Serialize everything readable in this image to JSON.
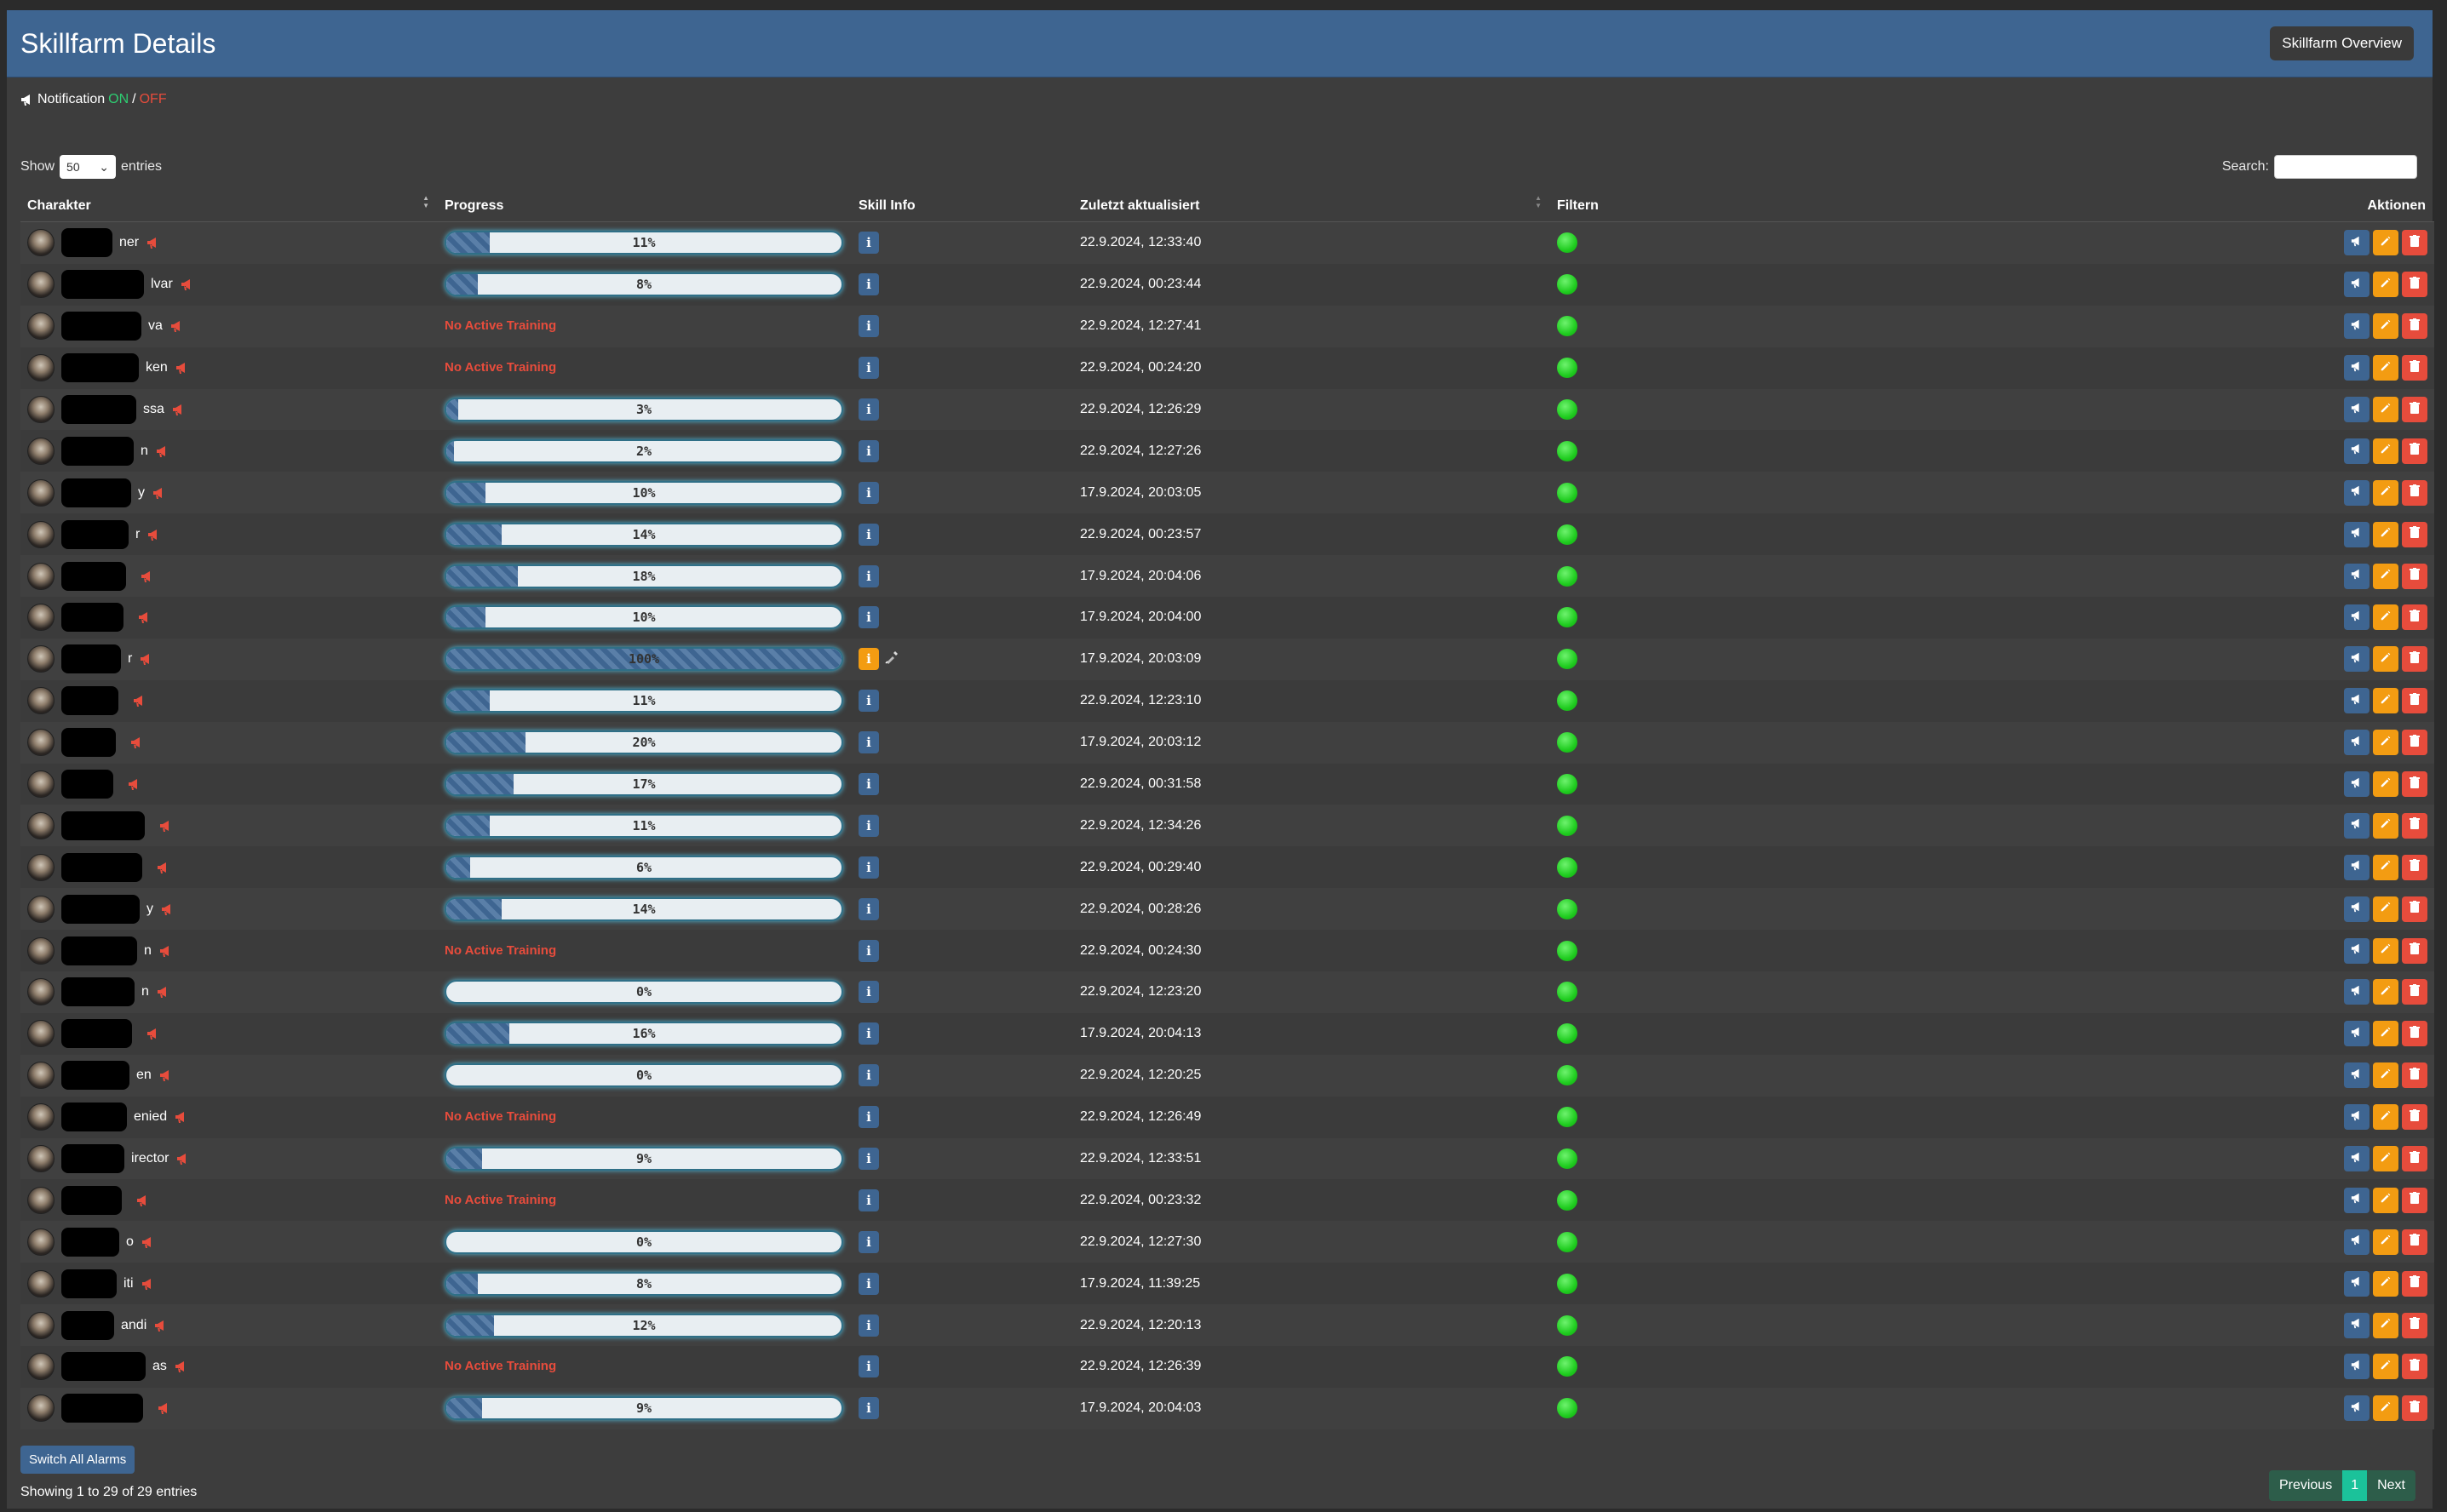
{
  "header": {
    "title": "Skillfarm Details",
    "overview_button": "Skillfarm Overview"
  },
  "notification": {
    "label": "Notification",
    "on": "ON",
    "sep": "/",
    "off": "OFF"
  },
  "controls": {
    "show_label": "Show",
    "entries_label": "entries",
    "page_size": "50",
    "search_label": "Search:",
    "search_value": ""
  },
  "columns": {
    "character": "Charakter",
    "progress": "Progress",
    "skill_info": "Skill Info",
    "updated": "Zuletzt aktualisiert",
    "filter": "Filtern",
    "actions": "Aktionen"
  },
  "no_training_text": "No Active Training",
  "rows": [
    {
      "name": "ner",
      "progress": 11,
      "label": "11%",
      "updated": "22.9.2024, 12:33:40"
    },
    {
      "name": "lvar",
      "progress": 8,
      "label": "8%",
      "updated": "22.9.2024, 00:23:44"
    },
    {
      "name": "va",
      "progress": null,
      "label": "",
      "updated": "22.9.2024, 12:27:41"
    },
    {
      "name": "ken",
      "progress": null,
      "label": "",
      "updated": "22.9.2024, 00:24:20"
    },
    {
      "name": "ssa",
      "progress": 3,
      "label": "3%",
      "updated": "22.9.2024, 12:26:29"
    },
    {
      "name": "n",
      "progress": 2,
      "label": "2%",
      "updated": "22.9.2024, 12:27:26"
    },
    {
      "name": "y",
      "progress": 10,
      "label": "10%",
      "updated": "17.9.2024, 20:03:05"
    },
    {
      "name": "r",
      "progress": 14,
      "label": "14%",
      "updated": "22.9.2024, 00:23:57"
    },
    {
      "name": "",
      "progress": 18,
      "label": "18%",
      "updated": "17.9.2024, 20:04:06"
    },
    {
      "name": "",
      "progress": 10,
      "label": "10%",
      "updated": "17.9.2024, 20:04:00"
    },
    {
      "name": "r",
      "progress": 100,
      "label": "100%",
      "updated": "17.9.2024, 20:03:09",
      "warn": true
    },
    {
      "name": "",
      "progress": 11,
      "label": "11%",
      "updated": "22.9.2024, 12:23:10"
    },
    {
      "name": "",
      "progress": 20,
      "label": "20%",
      "updated": "17.9.2024, 20:03:12"
    },
    {
      "name": "",
      "progress": 17,
      "label": "17%",
      "updated": "22.9.2024, 00:31:58"
    },
    {
      "name": "",
      "progress": 11,
      "label": "11%",
      "updated": "22.9.2024, 12:34:26"
    },
    {
      "name": "",
      "progress": 6,
      "label": "6%",
      "updated": "22.9.2024, 00:29:40"
    },
    {
      "name": "y",
      "progress": 14,
      "label": "14%",
      "updated": "22.9.2024, 00:28:26"
    },
    {
      "name": "n",
      "progress": null,
      "label": "",
      "updated": "22.9.2024, 00:24:30"
    },
    {
      "name": "n",
      "progress": 0,
      "label": "0%",
      "updated": "22.9.2024, 12:23:20"
    },
    {
      "name": "",
      "progress": 16,
      "label": "16%",
      "updated": "17.9.2024, 20:04:13"
    },
    {
      "name": "en",
      "progress": 0,
      "label": "0%",
      "updated": "22.9.2024, 12:20:25"
    },
    {
      "name": "enied",
      "progress": null,
      "label": "",
      "updated": "22.9.2024, 12:26:49"
    },
    {
      "name": "irector",
      "progress": 9,
      "label": "9%",
      "updated": "22.9.2024, 12:33:51"
    },
    {
      "name": "",
      "progress": null,
      "label": "",
      "updated": "22.9.2024, 00:23:32"
    },
    {
      "name": "o",
      "progress": 0,
      "label": "0%",
      "updated": "22.9.2024, 12:27:30"
    },
    {
      "name": "iti",
      "progress": 8,
      "label": "8%",
      "updated": "17.9.2024, 11:39:25"
    },
    {
      "name": "andi",
      "progress": 12,
      "label": "12%",
      "updated": "22.9.2024, 12:20:13"
    },
    {
      "name": "as",
      "progress": null,
      "label": "",
      "updated": "22.9.2024, 12:26:39"
    },
    {
      "name": "",
      "progress": 9,
      "label": "9%",
      "updated": "17.9.2024, 20:04:03"
    }
  ],
  "footer": {
    "switch_alarms": "Switch All Alarms",
    "showing": "Showing 1 to 29 of 29 entries",
    "previous": "Previous",
    "current_page": "1",
    "next": "Next"
  },
  "colors": {
    "header": "#3e6591",
    "on": "#2ecc71",
    "off": "#e74c3c",
    "edit": "#f39c12",
    "delete": "#e74c3c",
    "status": "#1fcc1f"
  }
}
